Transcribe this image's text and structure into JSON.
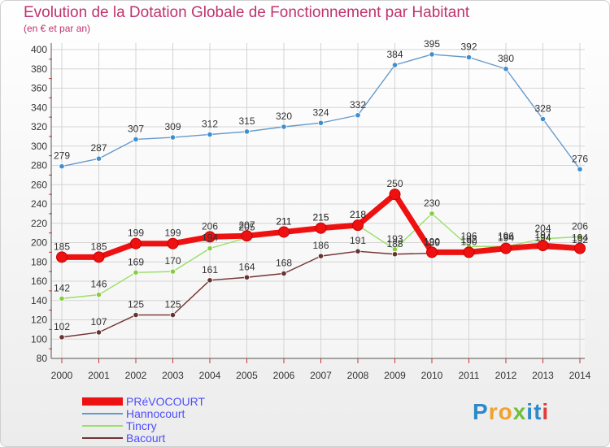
{
  "title": "Evolution de la Dotation Globale de Fonctionnement par Habitant",
  "subtitle": "(en € et par an)",
  "logo": {
    "text": "Proxiti",
    "letters": [
      "P",
      "r",
      "o",
      "x",
      "i",
      "t",
      "i"
    ],
    "colors": [
      "#2e89c9",
      "#f0a22c",
      "#f0a22c",
      "#6fbf3a",
      "#2e89c9",
      "#2e89c9",
      "#e23c3c"
    ]
  },
  "chart_data": {
    "type": "line",
    "title": "Evolution de la Dotation Globale de Fonctionnement par Habitant",
    "ylabel": "(en € et par an)",
    "x": [
      "2000",
      "2001",
      "2002",
      "2003",
      "2004",
      "2005",
      "2006",
      "2007",
      "2008",
      "2009",
      "2010",
      "2011",
      "2012",
      "2013",
      "2014"
    ],
    "ylim": [
      80,
      400
    ],
    "yticks": [
      "80",
      "100",
      "120",
      "140",
      "160",
      "180",
      "200",
      "220",
      "240",
      "260",
      "280",
      "300",
      "320",
      "340",
      "360",
      "380",
      "400"
    ],
    "grid": true,
    "series": [
      {
        "name": "Hannocourt",
        "color": "#6699cc",
        "marker": "#3f8fd0",
        "values": [
          279,
          287,
          307,
          309,
          312,
          315,
          320,
          324,
          332,
          384,
          395,
          392,
          380,
          328,
          276
        ],
        "labels": [
          "279",
          "287",
          "307",
          "309",
          "312",
          "315",
          "320",
          "324",
          "332",
          "384",
          "395",
          "392",
          "380",
          "328",
          "276"
        ]
      },
      {
        "name": "Tincry",
        "color": "#99e066",
        "marker": "#88cc44",
        "values": [
          142,
          146,
          169,
          170,
          194,
          205,
          211,
          215,
          218,
          193,
          230,
          196,
          196,
          204,
          206
        ],
        "labels": [
          "142",
          "146",
          "169",
          "170",
          "194",
          "205",
          "211",
          "215",
          "218",
          "193",
          "230",
          "196",
          "196",
          "204",
          "206"
        ]
      },
      {
        "name": "Bacourt",
        "color": "#733333",
        "marker": "#663333",
        "values": [
          102,
          107,
          125,
          125,
          161,
          164,
          168,
          186,
          191,
          188,
          189,
          192,
          194,
          194,
          192
        ],
        "labels": [
          "102",
          "107",
          "125",
          "125",
          "161",
          "164",
          "168",
          "186",
          "191",
          "188",
          "189",
          "192",
          "194",
          "194",
          "192"
        ]
      },
      {
        "name": "PRéVOCOURT",
        "color": "#ee1111",
        "marker": "#ee1111",
        "values": [
          185,
          185,
          199,
          199,
          206,
          207,
          211,
          215,
          218,
          250,
          190,
          190,
          194,
          197,
          194
        ],
        "labels": [
          "185",
          "185",
          "199",
          "199",
          "206",
          "207",
          "211",
          "215",
          "218",
          "250",
          "190",
          "190",
          "194",
          "197",
          "194"
        ]
      }
    ],
    "legend": [
      {
        "name": "PRéVOCOURT",
        "color": "#ee1111",
        "text_color": "#4d4dff"
      },
      {
        "name": "Hannocourt",
        "color": "#6699cc",
        "text_color": "#4d4dff"
      },
      {
        "name": "Tincry",
        "color": "#99e066",
        "text_color": "#4d4dff"
      },
      {
        "name": "Bacourt",
        "color": "#733333",
        "text_color": "#4d4dff"
      }
    ],
    "legend_position": "bottom-left"
  }
}
